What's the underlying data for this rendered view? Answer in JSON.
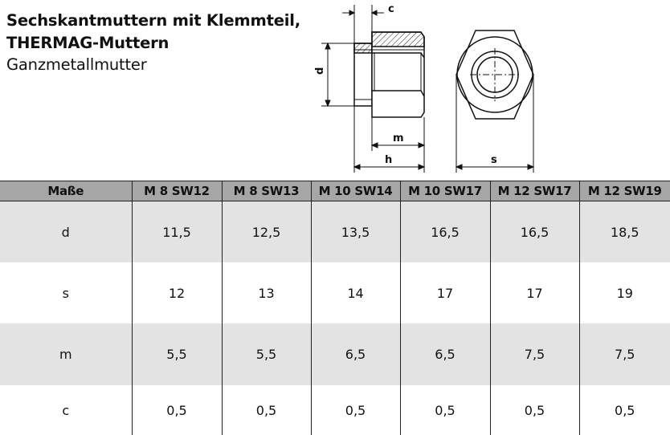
{
  "header": {
    "title_line1": "Sechskantmuttern mit Klemmteil,",
    "title_line2": "THERMAG-Muttern",
    "subtitle": "Ganzmetallmutter"
  },
  "drawing": {
    "labels": {
      "c": "c",
      "d": "d",
      "m": "m",
      "h": "h",
      "s": "s"
    }
  },
  "table": {
    "headers": [
      "Maße",
      "M 8 SW12",
      "M 8 SW13",
      "M 10 SW14",
      "M 10 SW17",
      "M 12 SW17",
      "M 12 SW19"
    ],
    "rows": [
      {
        "label": "d",
        "values": [
          "11,5",
          "12,5",
          "13,5",
          "16,5",
          "16,5",
          "18,5"
        ]
      },
      {
        "label": "s",
        "values": [
          "12",
          "13",
          "14",
          "17",
          "17",
          "19"
        ]
      },
      {
        "label": "m",
        "values": [
          "5,5",
          "5,5",
          "6,5",
          "6,5",
          "7,5",
          "7,5"
        ]
      },
      {
        "label": "c",
        "values": [
          "0,5",
          "0,5",
          "0,5",
          "0,5",
          "0,5",
          "0,5"
        ]
      }
    ]
  }
}
